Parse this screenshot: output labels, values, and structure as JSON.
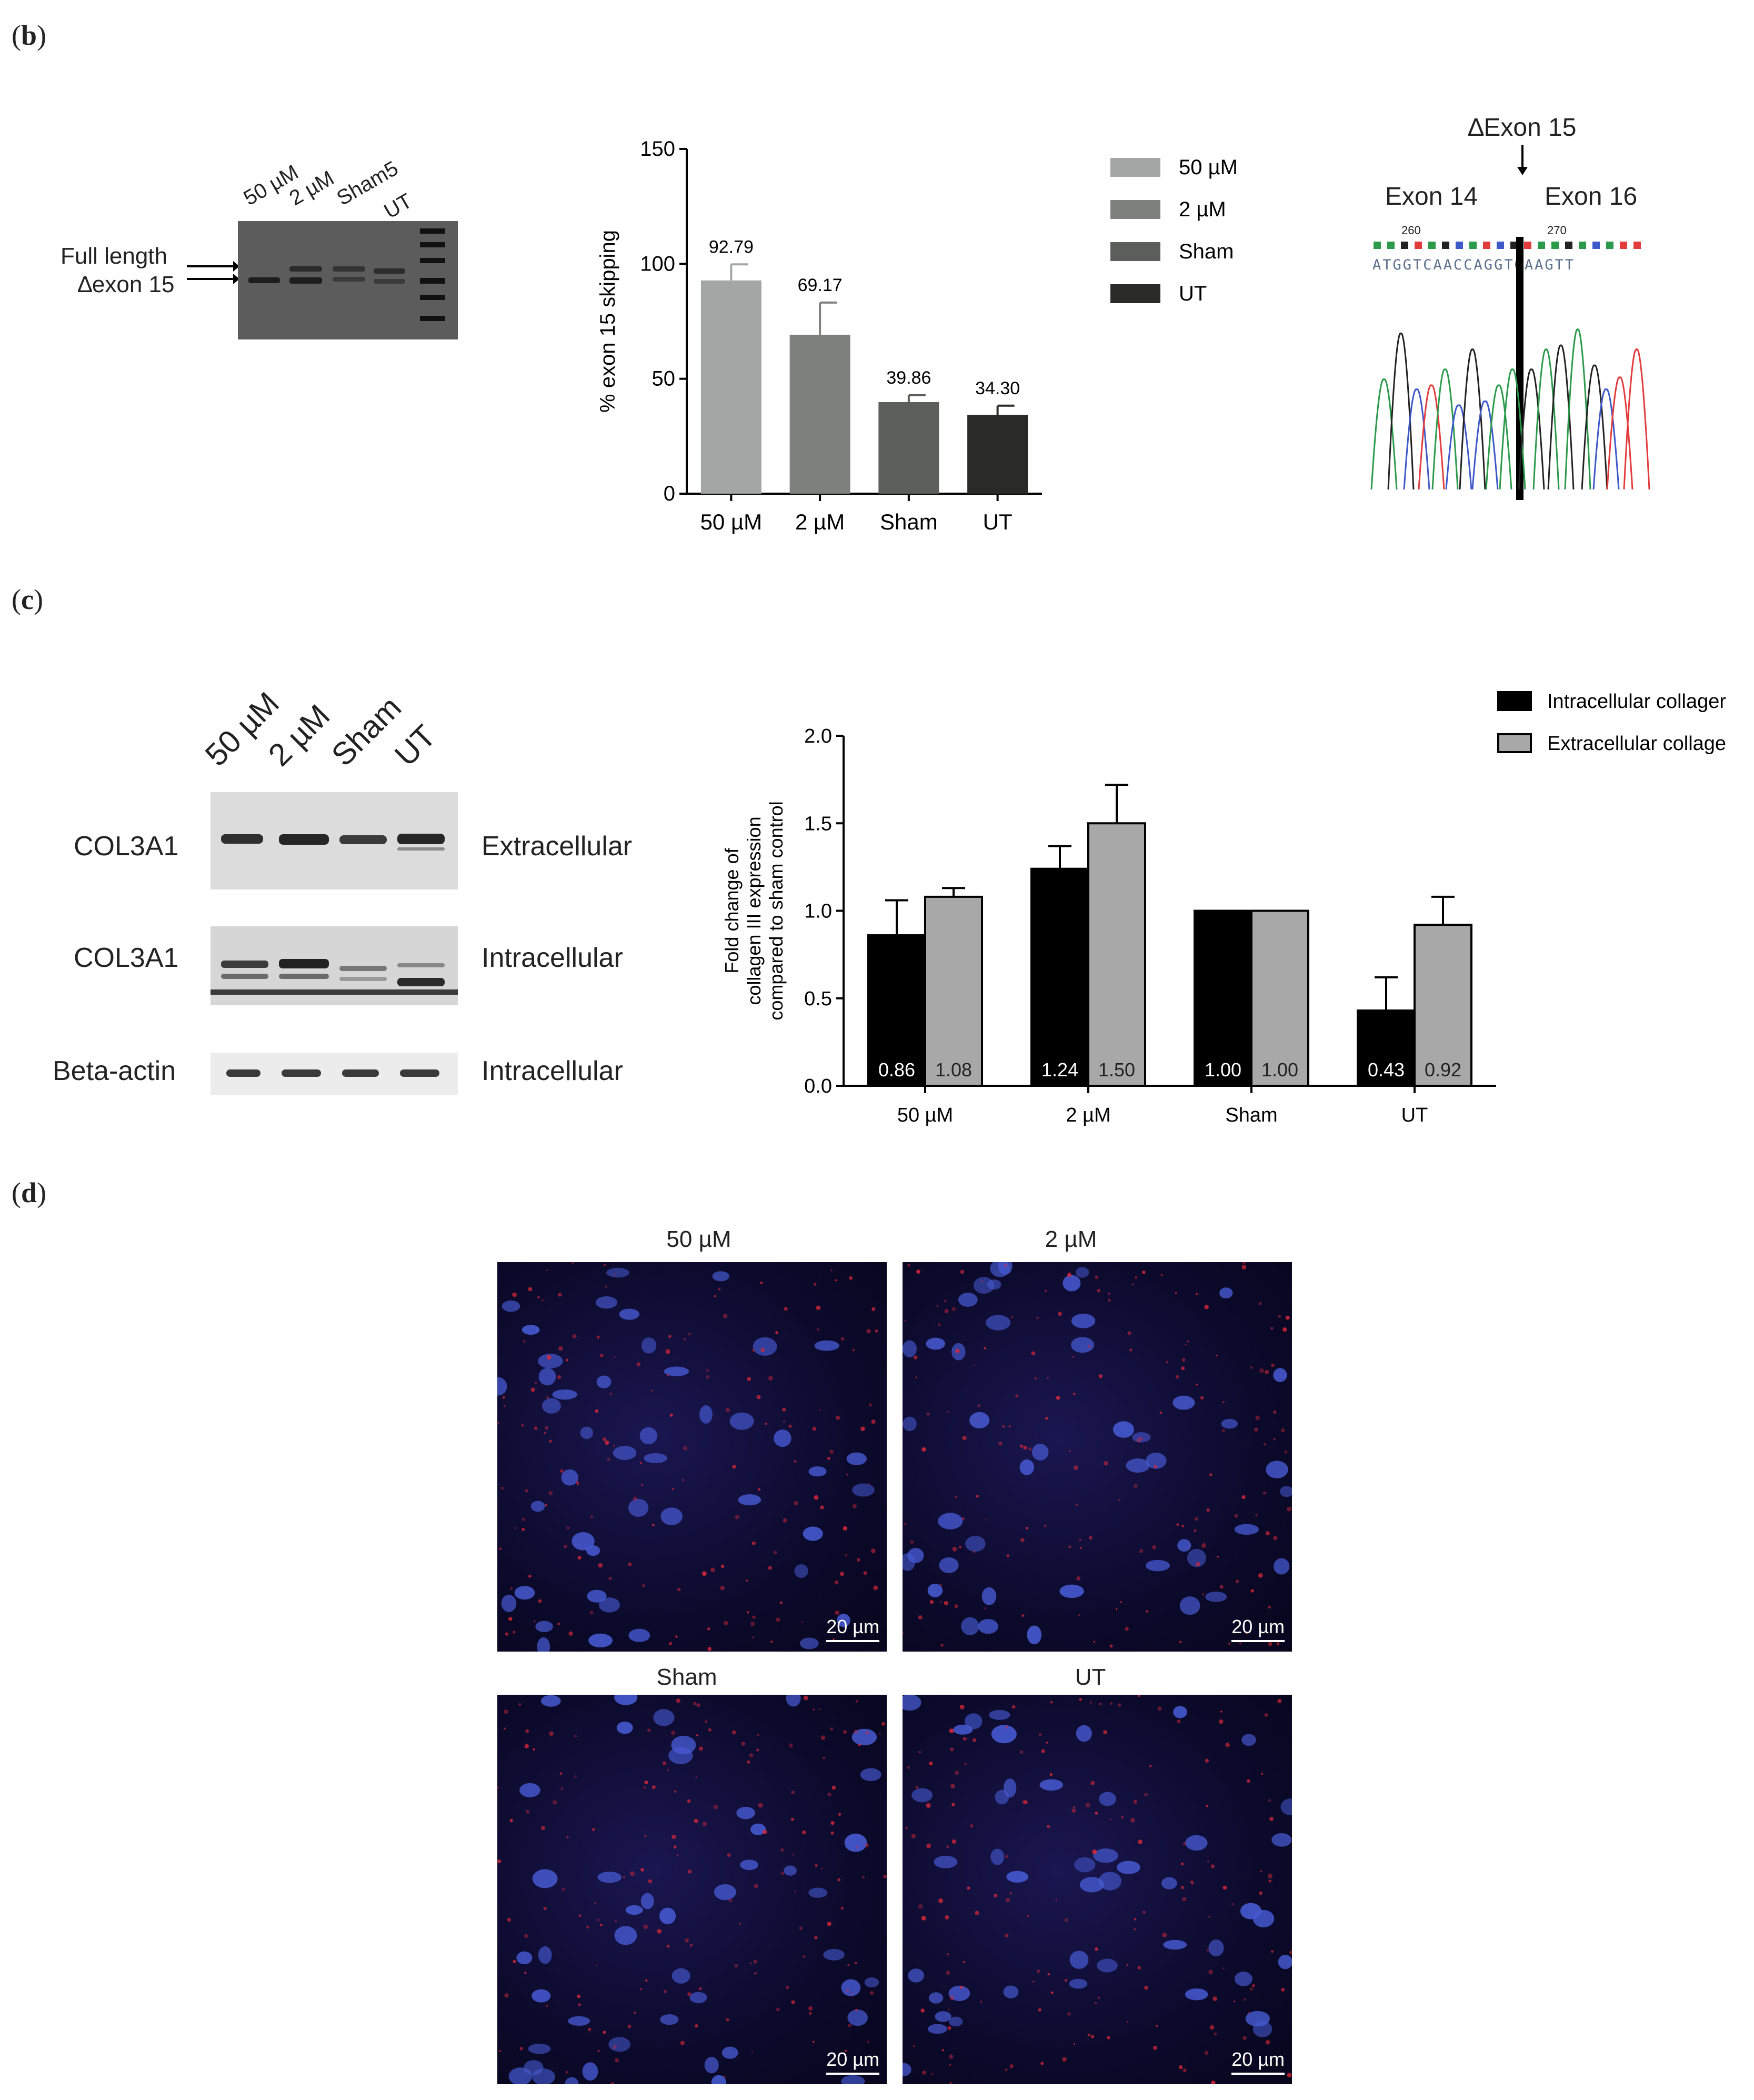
{
  "panels": {
    "b": {
      "letter_open": "(",
      "letter": "b",
      "letter_close": ")",
      "gel": {
        "lanes": [
          "50 µM",
          "2 µM",
          "Sham5",
          "UT"
        ],
        "band_labels": [
          "Full length",
          "∆exon 15"
        ]
      },
      "chromatogram": {
        "title": "∆Exon 15",
        "left_exon": "Exon 14",
        "right_exon": "Exon 16",
        "positions": [
          "260",
          "270"
        ],
        "sequence": "ATGGTCAACCAGGTGAAGTT"
      }
    },
    "c": {
      "letter_open": "(",
      "letter": "c",
      "letter_close": ")",
      "blot": {
        "lanes": [
          "50 µM",
          "2 µM",
          "Sham",
          "UT"
        ],
        "rows": [
          {
            "protein": "COL3A1",
            "fraction": "Extracellular"
          },
          {
            "protein": "COL3A1",
            "fraction": "Intracellular"
          },
          {
            "protein": "Beta-actin",
            "fraction": "Intracellular"
          }
        ]
      }
    },
    "d": {
      "letter_open": "(",
      "letter": "d",
      "letter_close": ")",
      "images": [
        {
          "title": "50 µM",
          "scale": "20 µm"
        },
        {
          "title": "2 µM",
          "scale": "20 µm"
        },
        {
          "title": "Sham",
          "scale": "20 µm"
        },
        {
          "title": "UT",
          "scale": "20 µm"
        }
      ]
    }
  },
  "chart_data": [
    {
      "type": "bar",
      "categories": [
        "50 µM",
        "2 µM",
        "Sham",
        "UT"
      ],
      "values": [
        92.79,
        69.17,
        39.86,
        34.3
      ],
      "value_labels": [
        "92.79",
        "69.17",
        "39.86",
        "34.30"
      ],
      "errors": [
        7,
        14,
        3,
        4
      ],
      "colors": [
        "#a3a6a4",
        "#7d807d",
        "#5c5e5b",
        "#2a2b28"
      ],
      "legend": [
        "50 µM",
        "2 µM",
        "Sham",
        "UT"
      ],
      "legend_position": "right",
      "ylabel": "% exon 15 skipping",
      "ylim": [
        0,
        150
      ],
      "yticks": [
        "0",
        "50",
        "100",
        "150"
      ],
      "grid": false
    },
    {
      "type": "bar",
      "categories": [
        "50 µM",
        "2 µM",
        "Sham",
        "UT"
      ],
      "series": [
        {
          "name": "Intracellular collager",
          "values": [
            0.86,
            1.24,
            1.0,
            0.43
          ],
          "labels": [
            "0.86",
            "1.24",
            "1.00",
            "0.43"
          ],
          "errors": [
            0.2,
            0.13,
            0,
            0.19
          ],
          "color": "#000000"
        },
        {
          "name": "Extracellular collage",
          "values": [
            1.08,
            1.5,
            1.0,
            0.92
          ],
          "labels": [
            "1.08",
            "1.50",
            "1.00",
            "0.92"
          ],
          "errors": [
            0.05,
            0.22,
            0,
            0.16
          ],
          "color": "#a8a8a8"
        }
      ],
      "ylabel": [
        "Fold change of",
        "collagen III expression",
        "compared to sham control"
      ],
      "ylim": [
        0,
        2.0
      ],
      "yticks": [
        "0.0",
        "0.5",
        "1.0",
        "1.5",
        "2.0"
      ],
      "legend_position": "top-right",
      "grid": false
    }
  ]
}
